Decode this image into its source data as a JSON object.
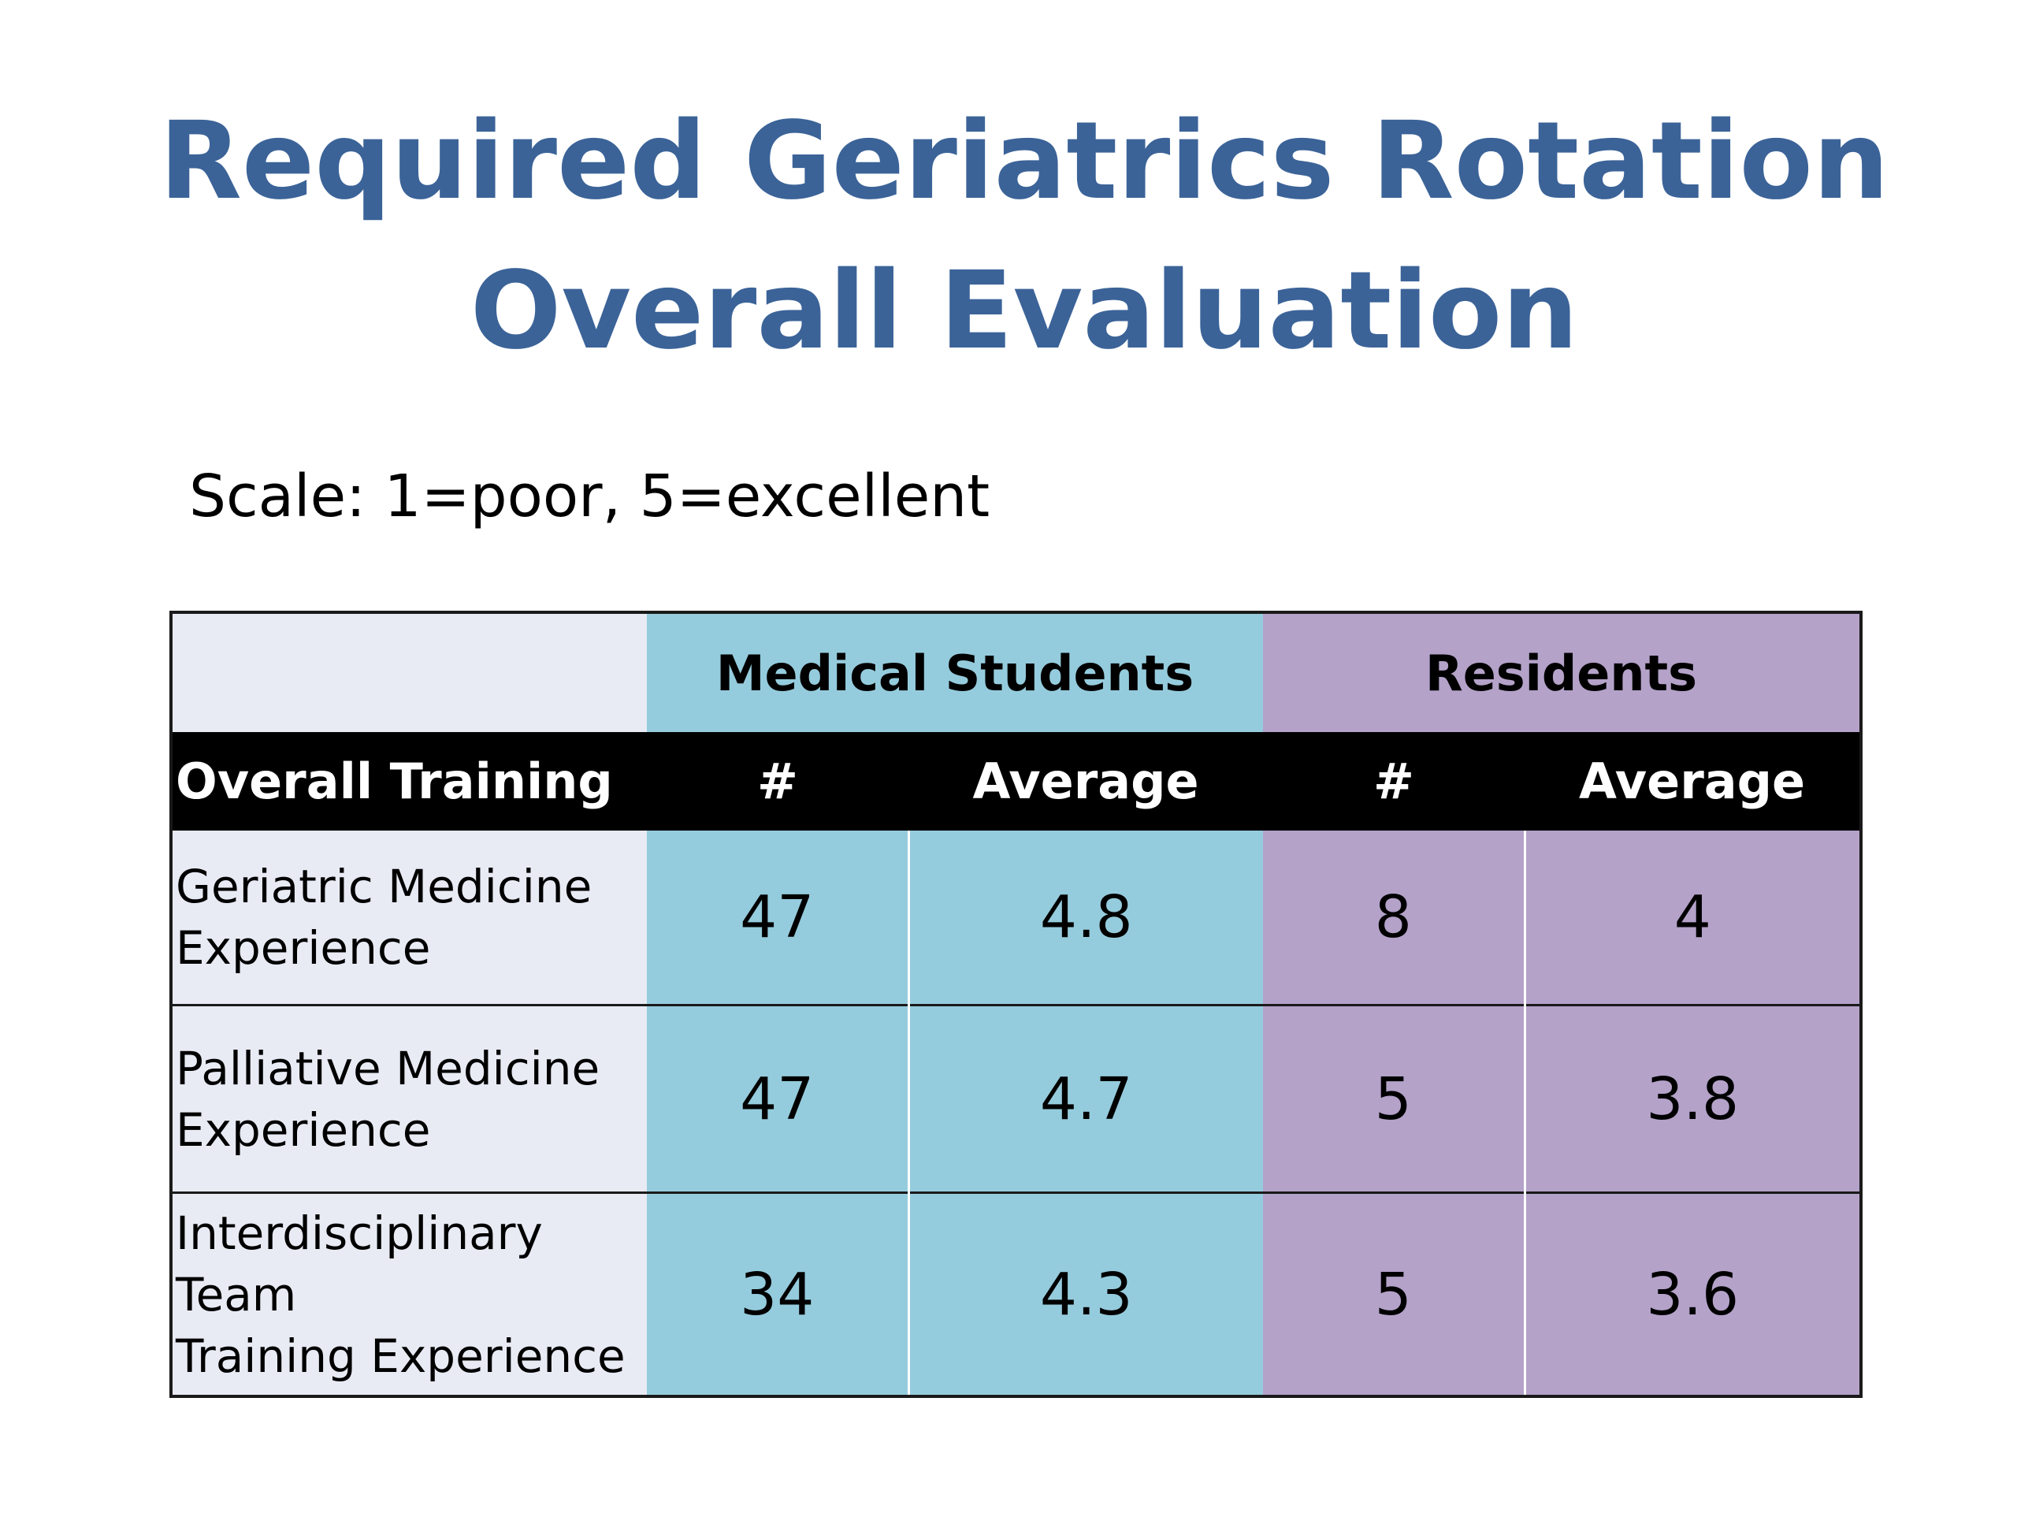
{
  "title": {
    "line1": "Required Geriatrics Rotation",
    "line2": "Overall Evaluation"
  },
  "scale_text": "Scale:  1=poor, 5=excellent",
  "table": {
    "group_headers": {
      "medical_students": "Medical Students",
      "residents": "Residents"
    },
    "column_headers": [
      "Overall Training",
      "#",
      "Average",
      "#",
      "Average"
    ],
    "rows": [
      {
        "label_line1": "Geriatric Medicine",
        "label_line2": "Experience",
        "ms_count": "47",
        "ms_avg": "4.8",
        "res_count": "8",
        "res_avg": "4"
      },
      {
        "label_line1": "Palliative Medicine",
        "label_line2": "Experience",
        "ms_count": "47",
        "ms_avg": "4.7",
        "res_count": "5",
        "res_avg": "3.8"
      },
      {
        "label_line1": "Interdisciplinary Team",
        "label_line2": "Training Experience",
        "ms_count": "34",
        "ms_avg": "4.3",
        "res_count": "5",
        "res_avg": "3.6"
      }
    ]
  },
  "colors": {
    "title": "#3b6398",
    "medical_students_bg": "#95ccdd",
    "residents_bg": "#b4a2c9",
    "label_bg": "#e8ebf4",
    "header_bg": "#000000"
  }
}
